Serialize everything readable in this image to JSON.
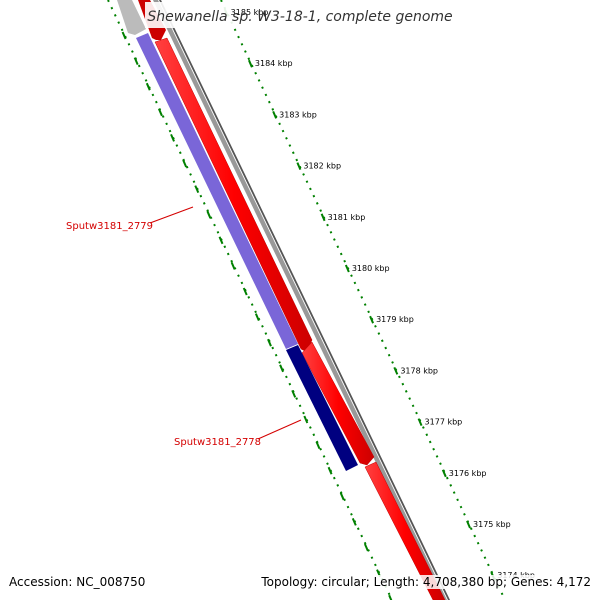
{
  "title": "Shewanella sp. W3-18-1, complete genome",
  "accession": "Accession: NC_008750",
  "summary": "Topology: circular; Length: 4,708,380 bp; Genes: 4,172",
  "ticks": [
    "3185 kbp",
    "3184 kbp",
    "3183 kbp",
    "3182 kbp",
    "3181 kbp",
    "3180 kbp",
    "3179 kbp",
    "3178 kbp",
    "3177 kbp",
    "3176 kbp",
    "3175 kbp",
    "3174 kbp"
  ],
  "genes": [
    {
      "name": "Sputw3181_2779",
      "color": "#7a66d8"
    },
    {
      "name": "Sputw3181_2778",
      "color": "#000080"
    }
  ],
  "colors": {
    "forward_track": "#ff0000",
    "backbone": "#888888",
    "ruler": "#008000",
    "label": "#d40000"
  }
}
